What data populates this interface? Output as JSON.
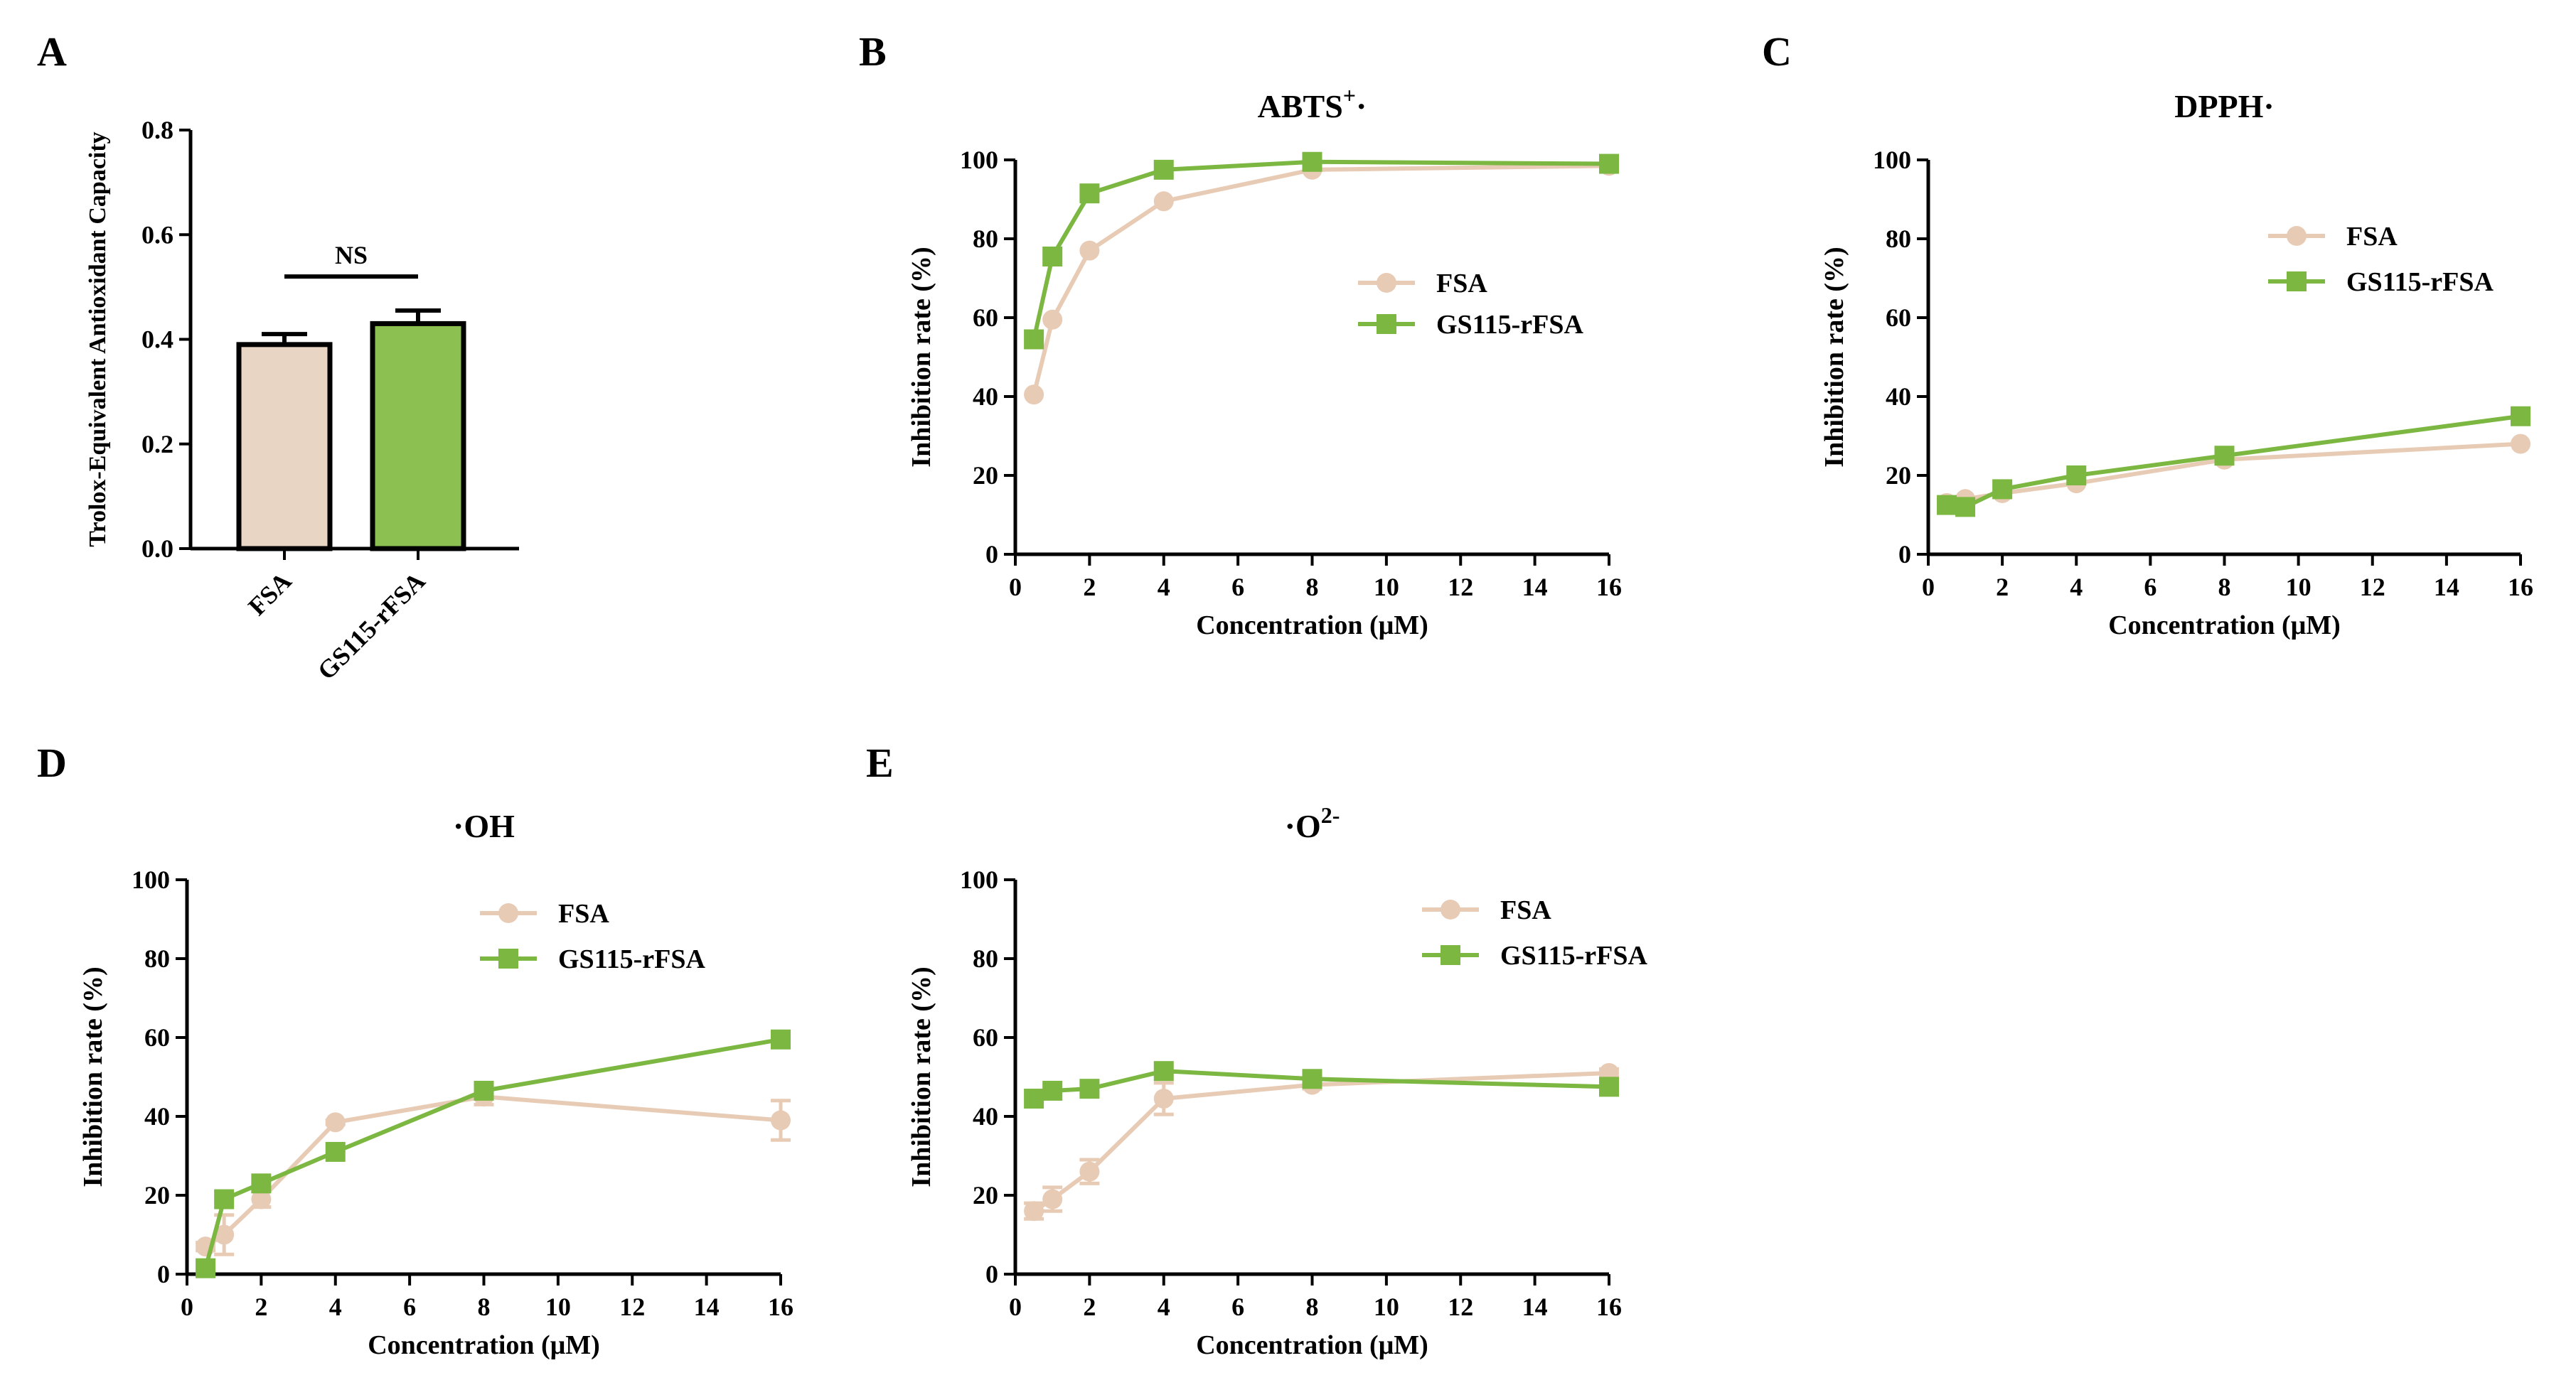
{
  "chart_data": [
    {
      "id": "A",
      "type": "bar",
      "panel_label": "A",
      "title": "",
      "xlabel": "",
      "ylabel": "Trolox-Equivalent Antioxidant Capacity",
      "ylim": [
        0,
        0.8
      ],
      "yticks": [
        "0.0",
        "0.2",
        "0.4",
        "0.6",
        "0.8"
      ],
      "categories": [
        "FSA",
        "GS115-rFSA"
      ],
      "values": [
        0.39,
        0.43
      ],
      "errors": [
        0.02,
        0.025
      ],
      "annotation": "NS",
      "colors": [
        "#e8d5c4",
        "#8cc152"
      ]
    },
    {
      "id": "B",
      "type": "line",
      "panel_label": "B",
      "title": "ABTS",
      "title_sup": "+",
      "title_suffix": "·",
      "xlabel": "Concentration (μM)",
      "ylabel": "Inhibition rate (%)",
      "xlim": [
        0,
        16
      ],
      "ylim": [
        0,
        100
      ],
      "xticks": [
        "0",
        "2",
        "4",
        "6",
        "8",
        "10",
        "12",
        "14",
        "16"
      ],
      "yticks": [
        "0",
        "20",
        "40",
        "60",
        "80",
        "100"
      ],
      "x": [
        0.5,
        1,
        2,
        4,
        8,
        16
      ],
      "legend_position": "right",
      "series": [
        {
          "name": "FSA",
          "marker": "circle",
          "color": "#e8cbb5",
          "values": [
            40.5,
            59.5,
            77,
            89.5,
            97.5,
            98.5
          ],
          "errors": [
            0,
            0,
            0,
            0,
            0,
            0
          ]
        },
        {
          "name": "GS115-rFSA",
          "marker": "square",
          "color": "#7cb742",
          "values": [
            54.5,
            75.5,
            91.5,
            97.5,
            99.5,
            99
          ]
        }
      ]
    },
    {
      "id": "C",
      "type": "line",
      "panel_label": "C",
      "title": "DPPH·",
      "title_sup": "",
      "title_suffix": "",
      "xlabel": "Concentration (μM)",
      "ylabel": "Inhibition rate (%)",
      "xlim": [
        0,
        16
      ],
      "ylim": [
        0,
        100
      ],
      "xticks": [
        "0",
        "2",
        "4",
        "6",
        "8",
        "10",
        "12",
        "14",
        "16"
      ],
      "yticks": [
        "0",
        "20",
        "40",
        "60",
        "80",
        "100"
      ],
      "x": [
        0.5,
        1,
        2,
        4,
        8,
        16
      ],
      "legend_position": "top-right",
      "series": [
        {
          "name": "FSA",
          "marker": "circle",
          "color": "#e8cbb5",
          "values": [
            13,
            14,
            15.5,
            18,
            24,
            28
          ],
          "errors": [
            0,
            0,
            0,
            0,
            1,
            0
          ]
        },
        {
          "name": "GS115-rFSA",
          "marker": "square",
          "color": "#7cb742",
          "values": [
            12.5,
            12,
            16.5,
            20,
            25,
            35
          ]
        }
      ]
    },
    {
      "id": "D",
      "type": "line",
      "panel_label": "D",
      "title": "·OH",
      "title_sup": "",
      "title_suffix": "",
      "xlabel": "Concentration (μM)",
      "ylabel": "Inhibition rate (%)",
      "xlim": [
        0,
        16
      ],
      "ylim": [
        0,
        100
      ],
      "xticks": [
        "0",
        "2",
        "4",
        "6",
        "8",
        "10",
        "12",
        "14",
        "16"
      ],
      "yticks": [
        "0",
        "20",
        "40",
        "60",
        "80",
        "100"
      ],
      "x": [
        0.5,
        1,
        2,
        4,
        8,
        16
      ],
      "legend_position": "top-right",
      "series": [
        {
          "name": "FSA",
          "marker": "circle",
          "color": "#e8cbb5",
          "values": [
            7,
            10,
            19,
            38.5,
            45,
            39
          ],
          "errors": [
            1,
            5,
            2,
            0.5,
            2,
            5
          ]
        },
        {
          "name": "GS115-rFSA",
          "marker": "square",
          "color": "#7cb742",
          "values": [
            1.5,
            19,
            23,
            31,
            46.5,
            59.5
          ]
        }
      ]
    },
    {
      "id": "E",
      "type": "line",
      "panel_label": "E",
      "title": "·O",
      "title_sup": "2-",
      "title_suffix": "",
      "xlabel": "Concentration (μM)",
      "ylabel": "Inhibition rate (%)",
      "xlim": [
        0,
        16
      ],
      "ylim": [
        0,
        100
      ],
      "xticks": [
        "0",
        "2",
        "4",
        "6",
        "8",
        "10",
        "12",
        "14",
        "16"
      ],
      "yticks": [
        "0",
        "20",
        "40",
        "60",
        "80",
        "100"
      ],
      "x": [
        0.5,
        1,
        2,
        4,
        8,
        16
      ],
      "legend_position": "top-right",
      "series": [
        {
          "name": "FSA",
          "marker": "circle",
          "color": "#e8cbb5",
          "values": [
            16,
            19,
            26,
            44.5,
            48,
            51
          ],
          "errors": [
            2,
            3,
            3,
            4,
            1,
            1
          ]
        },
        {
          "name": "GS115-rFSA",
          "marker": "square",
          "color": "#7cb742",
          "values": [
            44.5,
            46.5,
            47,
            51.5,
            49.5,
            47.5
          ]
        }
      ]
    }
  ]
}
